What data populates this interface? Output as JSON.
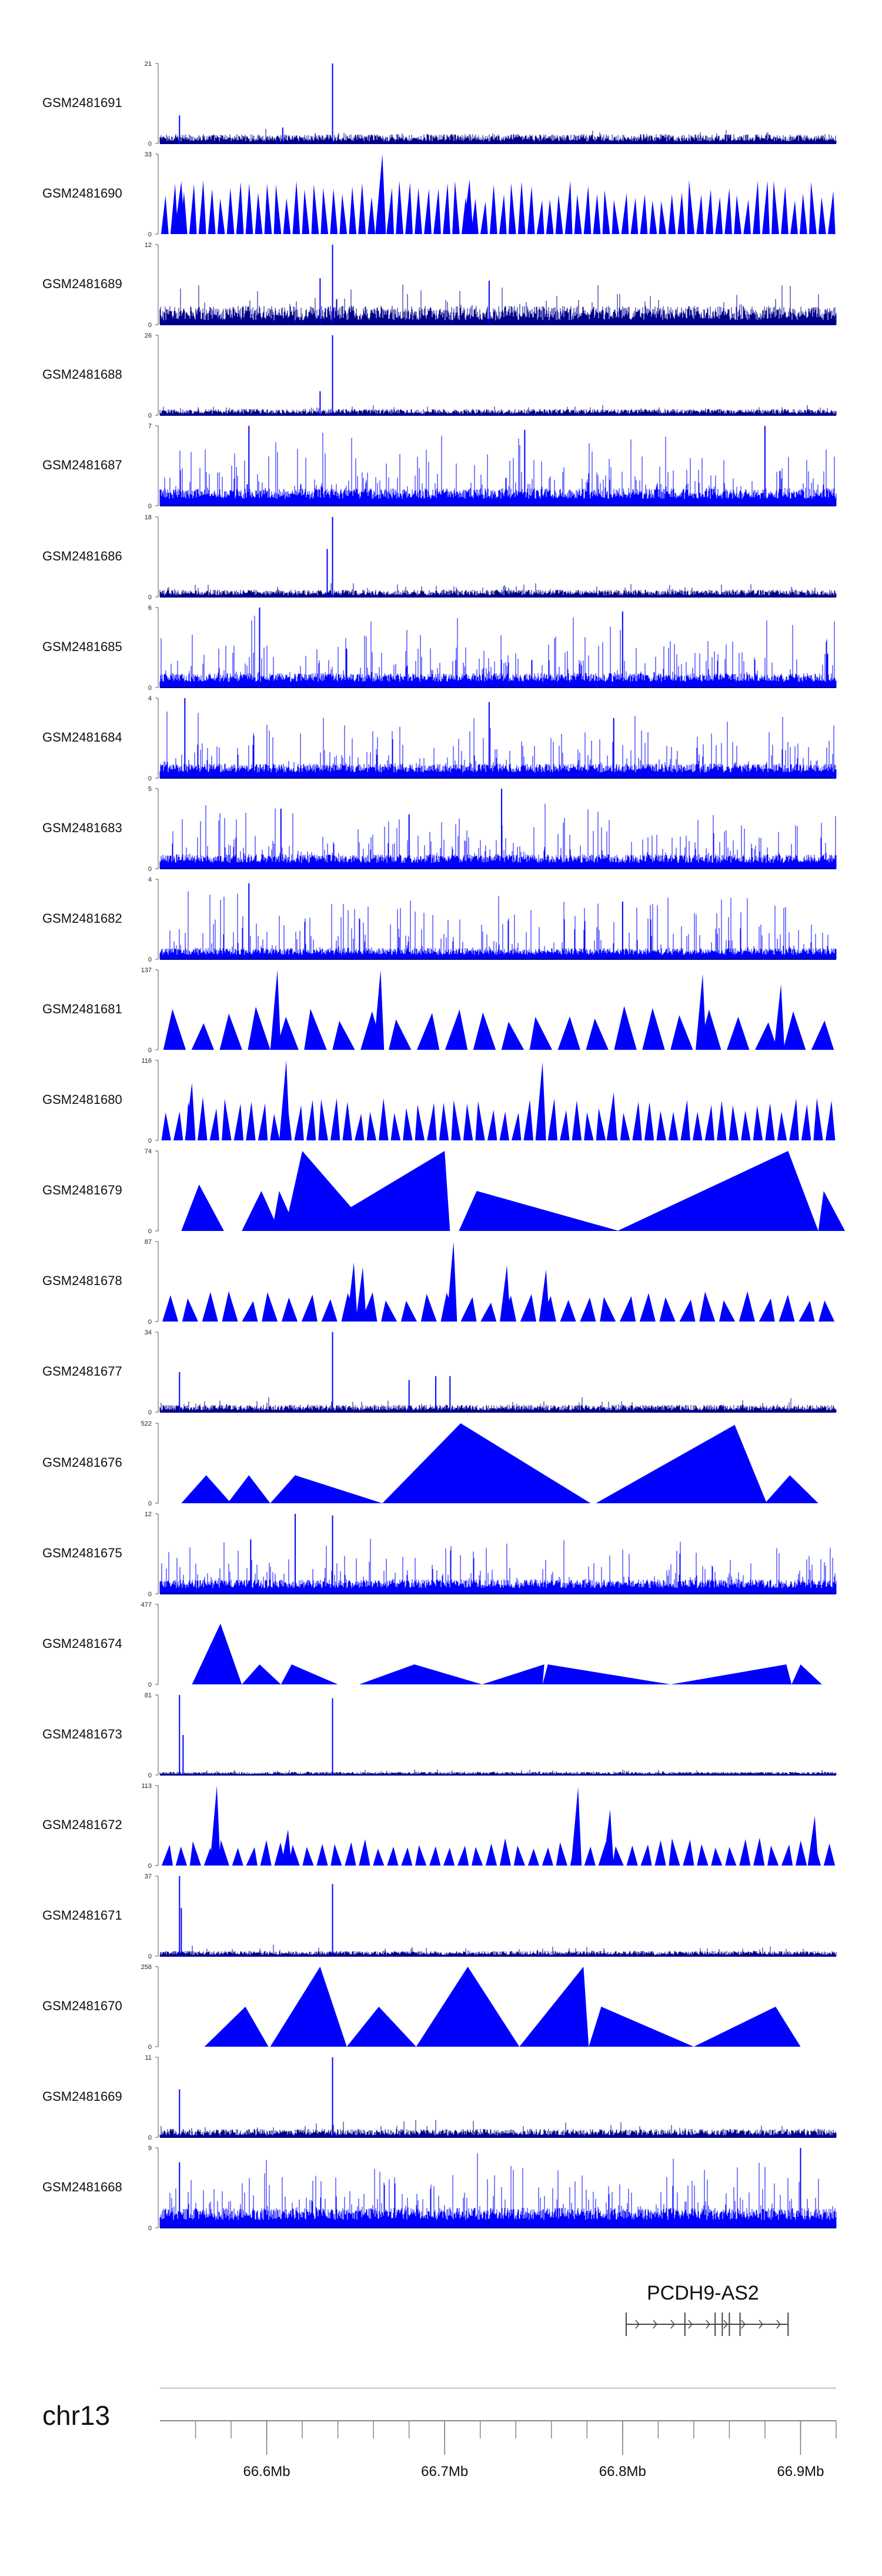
{
  "chart_data": {
    "type": "area",
    "title": "",
    "xlabel": "",
    "ylabel": "",
    "chromosome": "chr13",
    "x_range_mb": [
      66.54,
      66.92
    ],
    "x_ticks": [
      {
        "value": 66.6,
        "label": "66.6Mb"
      },
      {
        "value": 66.7,
        "label": "66.7Mb"
      },
      {
        "value": 66.8,
        "label": "66.8Mb"
      },
      {
        "value": 66.9,
        "label": "66.9Mb"
      }
    ],
    "gene": {
      "name": "PCDH9-AS2",
      "start_mb": 66.802,
      "end_mb": 66.893,
      "strand": "+",
      "exons_mb": [
        66.835,
        66.852,
        66.856,
        66.86,
        66.866
      ]
    },
    "series": [
      {
        "name": "GSM2481691",
        "ymax": 21,
        "style": "dense",
        "base": 0.09,
        "noise": 0.07,
        "peaks": [
          [
            66.637,
            1.0
          ],
          [
            66.551,
            0.35
          ],
          [
            66.609,
            0.2
          ]
        ]
      },
      {
        "name": "GSM2481690",
        "ymax": 33,
        "style": "tri",
        "count": 72,
        "peakTop": 0.68,
        "peaks": [
          [
            66.665,
            1.0
          ],
          [
            66.714,
            0.68
          ],
          [
            66.552,
            0.66
          ]
        ]
      },
      {
        "name": "GSM2481689",
        "ymax": 12,
        "style": "dense",
        "base": 0.18,
        "noise": 0.3,
        "peaks": [
          [
            66.637,
            1.0
          ],
          [
            66.725,
            0.55
          ],
          [
            66.63,
            0.58
          ]
        ]
      },
      {
        "name": "GSM2481688",
        "ymax": 26,
        "style": "dense",
        "base": 0.06,
        "noise": 0.06,
        "peaks": [
          [
            66.637,
            1.0
          ],
          [
            66.63,
            0.3
          ]
        ]
      },
      {
        "name": "GSM2481687",
        "ymax": 7,
        "style": "bars",
        "base": 0.22,
        "noise": 0.85,
        "peaks": [
          [
            66.59,
            1.0
          ],
          [
            66.745,
            0.95
          ],
          [
            66.88,
            1.0
          ]
        ]
      },
      {
        "name": "GSM2481686",
        "ymax": 18,
        "style": "dense",
        "base": 0.07,
        "noise": 0.1,
        "peaks": [
          [
            66.637,
            1.0
          ],
          [
            66.634,
            0.6
          ]
        ]
      },
      {
        "name": "GSM2481685",
        "ymax": 6,
        "style": "bars",
        "base": 0.18,
        "noise": 0.85,
        "peaks": [
          [
            66.596,
            1.0
          ],
          [
            66.8,
            0.95
          ]
        ]
      },
      {
        "name": "GSM2481684",
        "ymax": 4,
        "style": "bars",
        "base": 0.18,
        "noise": 0.8,
        "peaks": [
          [
            66.554,
            1.0
          ],
          [
            66.725,
            0.95
          ],
          [
            66.795,
            0.75
          ]
        ]
      },
      {
        "name": "GSM2481683",
        "ymax": 5,
        "style": "bars",
        "base": 0.18,
        "noise": 0.8,
        "peaks": [
          [
            66.732,
            1.0
          ],
          [
            66.608,
            0.75
          ],
          [
            66.68,
            0.68
          ]
        ]
      },
      {
        "name": "GSM2481682",
        "ymax": 4,
        "style": "bars",
        "base": 0.14,
        "noise": 0.85,
        "peaks": [
          [
            66.59,
            0.95
          ],
          [
            66.8,
            0.72
          ]
        ]
      },
      {
        "name": "GSM2481681",
        "ymax": 137,
        "style": "tri",
        "count": 24,
        "peakTop": 0.55,
        "peaks": [
          [
            66.606,
            1.0
          ],
          [
            66.664,
            1.0
          ],
          [
            66.845,
            0.95
          ],
          [
            66.889,
            0.82
          ]
        ]
      },
      {
        "name": "GSM2481680",
        "ymax": 116,
        "style": "tri",
        "count": 56,
        "peakTop": 0.55,
        "peaks": [
          [
            66.611,
            1.0
          ],
          [
            66.755,
            0.98
          ],
          [
            66.558,
            0.72
          ],
          [
            66.795,
            0.6
          ]
        ]
      },
      {
        "name": "GSM2481679",
        "ymax": 74,
        "style": "polys",
        "polys": [
          [
            66.552,
            66.562,
            66.576,
            0.58
          ],
          [
            66.586,
            66.597,
            66.607,
            0.5
          ],
          [
            66.603,
            66.607,
            66.617,
            0.5
          ],
          [
            66.61,
            66.62,
            66.659,
            1.0
          ],
          [
            66.625,
            66.7,
            66.703,
            1.0
          ],
          [
            66.708,
            66.718,
            66.798,
            0.5
          ],
          [
            66.797,
            66.893,
            66.91,
            1.0
          ],
          [
            66.91,
            66.913,
            66.925,
            0.5
          ]
        ]
      },
      {
        "name": "GSM2481678",
        "ymax": 87,
        "style": "tri",
        "count": 34,
        "peakTop": 0.38,
        "peaks": [
          [
            66.705,
            1.0
          ],
          [
            66.735,
            0.7
          ],
          [
            66.649,
            0.74
          ],
          [
            66.654,
            0.68
          ],
          [
            66.757,
            0.65
          ]
        ]
      },
      {
        "name": "GSM2481677",
        "ymax": 34,
        "style": "dense",
        "base": 0.07,
        "noise": 0.1,
        "peaks": [
          [
            66.637,
            1.0
          ],
          [
            66.551,
            0.5
          ],
          [
            66.695,
            0.45
          ],
          [
            66.703,
            0.45
          ],
          [
            66.68,
            0.4
          ]
        ]
      },
      {
        "name": "GSM2481676",
        "ymax": 522,
        "style": "polys",
        "polys": [
          [
            66.552,
            66.566,
            66.58,
            0.35
          ],
          [
            66.578,
            66.59,
            66.602,
            0.35
          ],
          [
            66.602,
            66.616,
            66.665,
            0.35
          ],
          [
            66.665,
            66.709,
            66.782,
            1.0
          ],
          [
            66.785,
            66.863,
            66.881,
            0.98
          ],
          [
            66.88,
            66.894,
            66.91,
            0.35
          ]
        ]
      },
      {
        "name": "GSM2481675",
        "ymax": 12,
        "style": "bars",
        "base": 0.18,
        "noise": 0.6,
        "peaks": [
          [
            66.616,
            1.0
          ],
          [
            66.637,
            0.98
          ],
          [
            66.591,
            0.68
          ]
        ]
      },
      {
        "name": "GSM2481674",
        "ymax": 477,
        "style": "polys",
        "polys": [
          [
            66.558,
            66.574,
            66.586,
            0.76
          ],
          [
            66.586,
            66.596,
            66.608,
            0.25
          ],
          [
            66.608,
            66.614,
            66.64,
            0.25
          ],
          [
            66.652,
            66.683,
            66.721,
            0.25
          ],
          [
            66.721,
            66.756,
            66.755,
            0.25
          ],
          [
            66.755,
            66.758,
            66.827,
            0.25
          ],
          [
            66.827,
            66.892,
            66.895,
            0.25
          ],
          [
            66.895,
            66.9,
            66.912,
            0.25
          ]
        ]
      },
      {
        "name": "GSM2481673",
        "ymax": 81,
        "style": "dense",
        "base": 0.03,
        "noise": 0.04,
        "peaks": [
          [
            66.551,
            1.0
          ],
          [
            66.637,
            0.96
          ],
          [
            66.553,
            0.5
          ]
        ]
      },
      {
        "name": "GSM2481672",
        "ymax": 113,
        "style": "tri",
        "count": 48,
        "peakTop": 0.35,
        "peaks": [
          [
            66.572,
            1.0
          ],
          [
            66.775,
            0.98
          ],
          [
            66.908,
            0.62
          ],
          [
            66.793,
            0.7
          ],
          [
            66.612,
            0.45
          ]
        ]
      },
      {
        "name": "GSM2481671",
        "ymax": 37,
        "style": "dense",
        "base": 0.05,
        "noise": 0.08,
        "peaks": [
          [
            66.551,
            1.0
          ],
          [
            66.637,
            0.9
          ],
          [
            66.552,
            0.6
          ]
        ]
      },
      {
        "name": "GSM2481670",
        "ymax": 258,
        "style": "polys",
        "polys": [
          [
            66.565,
            66.588,
            66.601,
            0.5
          ],
          [
            66.602,
            66.63,
            66.645,
            1.0
          ],
          [
            66.645,
            66.663,
            66.684,
            0.5
          ],
          [
            66.684,
            66.713,
            66.742,
            1.0
          ],
          [
            66.742,
            66.778,
            66.781,
            1.0
          ],
          [
            66.781,
            66.788,
            66.84,
            0.5
          ],
          [
            66.84,
            66.886,
            66.9,
            0.5
          ]
        ]
      },
      {
        "name": "GSM2481669",
        "ymax": 11,
        "style": "dense",
        "base": 0.08,
        "noise": 0.12,
        "peaks": [
          [
            66.637,
            1.0
          ],
          [
            66.551,
            0.6
          ]
        ]
      },
      {
        "name": "GSM2481668",
        "ymax": 9,
        "style": "bars",
        "base": 0.25,
        "noise": 0.8,
        "peaks": [
          [
            66.9,
            1.0
          ],
          [
            66.551,
            0.82
          ]
        ]
      }
    ]
  },
  "colors": {
    "fill": "#0000ff",
    "dense": "#00008b",
    "line": "#1f2a8f",
    "axis": "#555555",
    "gene": "#444444"
  }
}
